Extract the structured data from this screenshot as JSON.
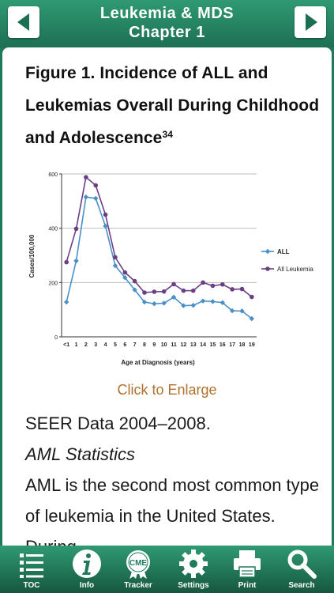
{
  "header": {
    "title_line1": "Leukemia & MDS",
    "title_line2": "Chapter 1",
    "back_icon": "left-arrow-icon",
    "forward_icon": "right-arrow-icon"
  },
  "figure": {
    "title": "Figure 1. Incidence of ALL and Leukemias Overall During Childhood and Adolescence",
    "ref": "34",
    "enlarge_link": "Click to Enlarge"
  },
  "chart_data": {
    "type": "line",
    "title": "",
    "xlabel": "Age at Diagnosis (years)",
    "ylabel": "Cases/100,000",
    "categories": [
      "<1",
      "1",
      "2",
      "3",
      "4",
      "5",
      "6",
      "7",
      "8",
      "9",
      "10",
      "11",
      "12",
      "13",
      "14",
      "15",
      "16",
      "17",
      "18",
      "19"
    ],
    "y_ticks": [
      "0",
      "200",
      "400",
      "600"
    ],
    "ylim": [
      0,
      600
    ],
    "grid": true,
    "legend_position": "right",
    "series": [
      {
        "name": "ALL",
        "color": "#4a90c6",
        "marker": "diamond",
        "values": [
          128,
          280,
          515,
          510,
          408,
          262,
          218,
          173,
          128,
          122,
          124,
          146,
          115,
          116,
          132,
          130,
          126,
          96,
          95,
          67
        ]
      },
      {
        "name": "All Leukemia",
        "color": "#6b3f86",
        "marker": "circle",
        "values": [
          275,
          398,
          588,
          558,
          450,
          293,
          237,
          205,
          163,
          166,
          167,
          194,
          170,
          170,
          200,
          188,
          193,
          175,
          176,
          147
        ]
      }
    ]
  },
  "body": {
    "source": "SEER Data 2004–2008.",
    "section_heading": "AML Statistics",
    "paragraph_line1": "AML is the second most common type",
    "paragraph_line2": "of leukemia in the United States. During"
  },
  "tabs": [
    {
      "label": "TOC",
      "icon": "list-icon"
    },
    {
      "label": "Info",
      "icon": "info-icon"
    },
    {
      "label": "Tracker",
      "icon": "cme-badge-icon"
    },
    {
      "label": "Settings",
      "icon": "gear-icon"
    },
    {
      "label": "Print",
      "icon": "printer-icon"
    },
    {
      "label": "Search",
      "icon": "search-icon"
    }
  ]
}
